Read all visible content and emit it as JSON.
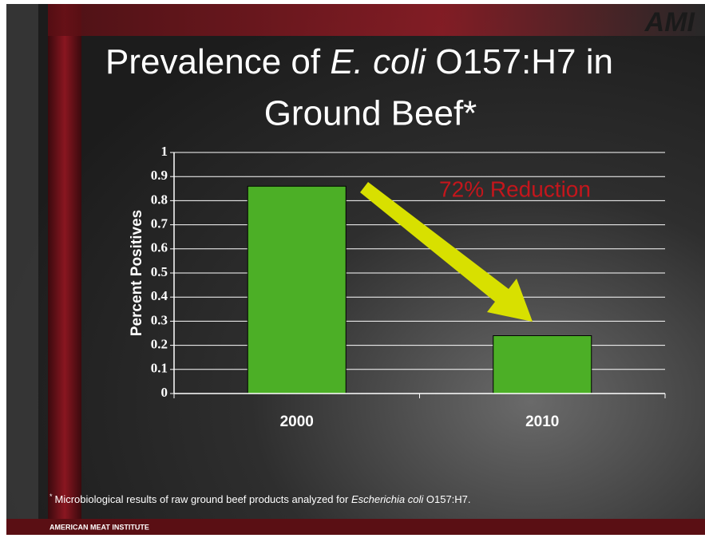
{
  "title_parts": [
    "Prevalence of ",
    "E. coli",
    " O157:H7 in",
    "Ground Beef*"
  ],
  "logo": "AMI",
  "chart_data": {
    "type": "bar",
    "categories": [
      "2000",
      "2010"
    ],
    "values": [
      0.86,
      0.24
    ],
    "color": "#4caf26",
    "ylabel": "Percent Positives",
    "annotation": "72% Reduction",
    "ylim": [
      0,
      1
    ],
    "yticks": [
      0,
      0.1,
      0.2,
      0.3,
      0.4,
      0.5,
      0.6,
      0.7,
      0.8,
      0.9,
      1
    ],
    "grid": true
  },
  "footnote": {
    "mark": "*",
    "parts": [
      "Microbiological results of raw ground beef products analyzed for ",
      "Escherichia coli",
      " O157:H7."
    ]
  },
  "footer": "AMERICAN MEAT INSTITUTE"
}
